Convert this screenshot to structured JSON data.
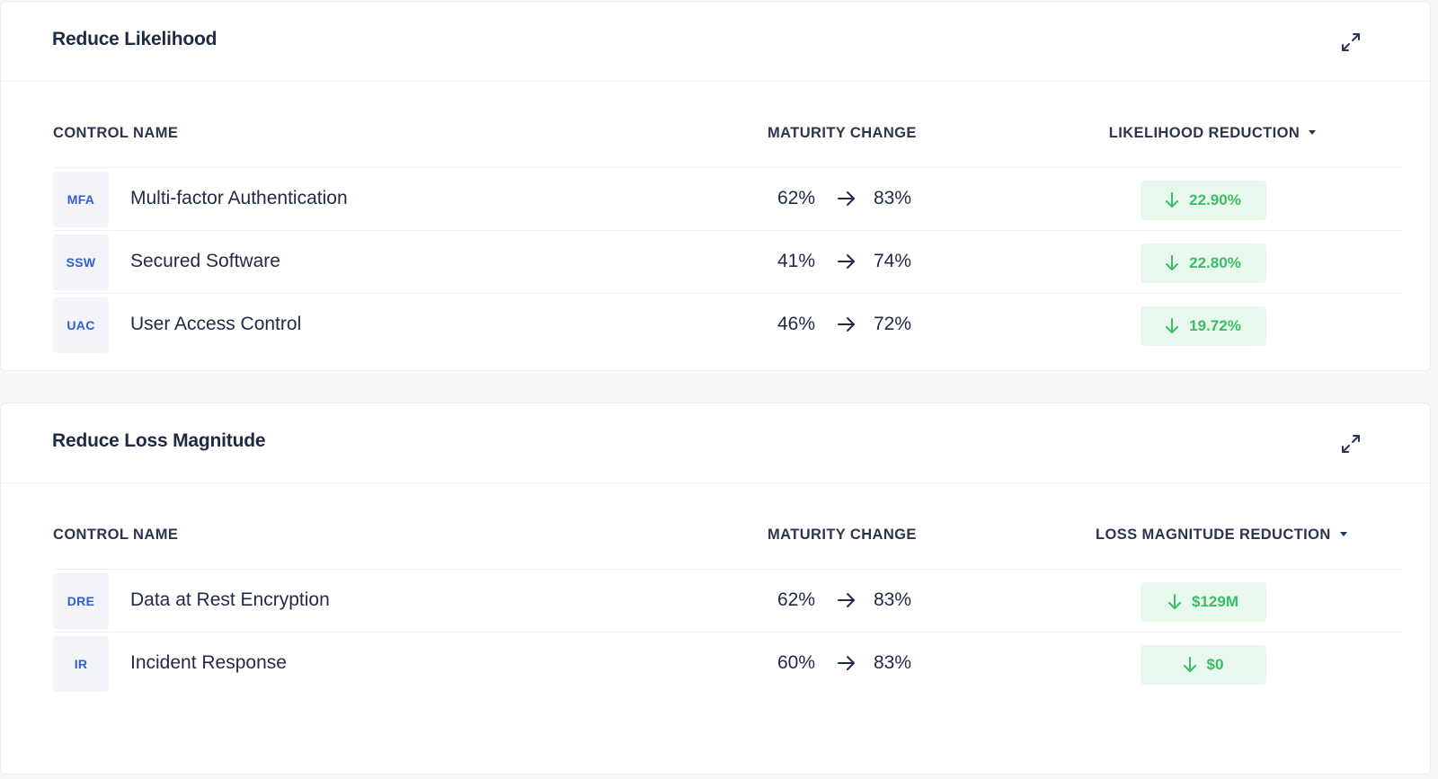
{
  "sections": [
    {
      "title": "Reduce Likelihood",
      "columns": {
        "name": "CONTROL NAME",
        "maturity": "MATURITY CHANGE",
        "reduction": "LIKELIHOOD REDUCTION"
      },
      "rows": [
        {
          "abbr": "MFA",
          "name": "Multi-factor Authentication",
          "from": "62%",
          "to": "83%",
          "reduction": "22.90%"
        },
        {
          "abbr": "SSW",
          "name": "Secured Software",
          "from": "41%",
          "to": "74%",
          "reduction": "22.80%"
        },
        {
          "abbr": "UAC",
          "name": "User Access Control",
          "from": "46%",
          "to": "72%",
          "reduction": "19.72%"
        }
      ]
    },
    {
      "title": "Reduce Loss Magnitude",
      "columns": {
        "name": "CONTROL NAME",
        "maturity": "MATURITY CHANGE",
        "reduction": "LOSS MAGNITUDE REDUCTION"
      },
      "rows": [
        {
          "abbr": "DRE",
          "name": "Data at Rest Encryption",
          "from": "62%",
          "to": "83%",
          "reduction": "$129M"
        },
        {
          "abbr": "IR",
          "name": "Incident Response",
          "from": "60%",
          "to": "83%",
          "reduction": "$0"
        }
      ]
    }
  ],
  "icons": {
    "expand": "expand-icon",
    "arrow_right": "arrow-right-icon",
    "arrow_down": "arrow-down-icon",
    "sort_caret": "caret-down-icon"
  },
  "colors": {
    "text": "#1f2a44",
    "abbr_text": "#2f5fd0",
    "abbr_bg": "#f2f4f9",
    "badge_text": "#3bbd66",
    "badge_bg": "#e8f8ec"
  }
}
